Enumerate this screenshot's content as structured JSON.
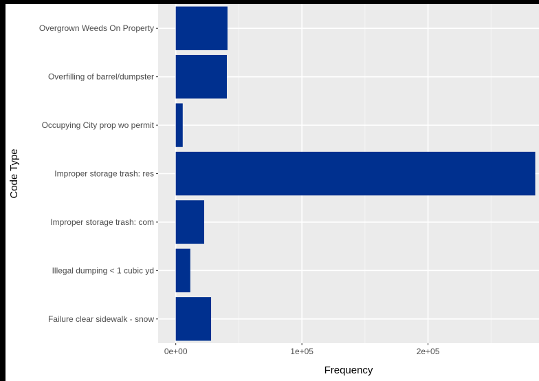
{
  "chart_data": {
    "type": "bar",
    "orientation": "horizontal",
    "categories": [
      "Overgrown Weeds On Property",
      "Overfilling of barrel/dumpster",
      "Occupying City prop wo permit",
      "Improper storage trash: res",
      "Improper storage trash: com",
      "Illegal dumping < 1 cubic yd",
      "Failure clear sidewalk - snow"
    ],
    "values": [
      41000,
      40500,
      5500,
      285000,
      22500,
      11500,
      28000
    ],
    "xlabel": "Frequency",
    "ylabel": "Code Type",
    "x_ticks": [
      0,
      100000,
      200000
    ],
    "x_tick_labels": [
      "0e+00",
      "1e+05",
      "2e+05"
    ],
    "xlim": [
      -14000,
      288000
    ],
    "grid": true,
    "colors": {
      "bar": "#00308f",
      "panel": "#ebebeb",
      "grid_major": "#ffffff",
      "grid_minor": "#f5f5f5",
      "tick_text": "#4d4d4d",
      "axis_title": "#000000"
    }
  }
}
